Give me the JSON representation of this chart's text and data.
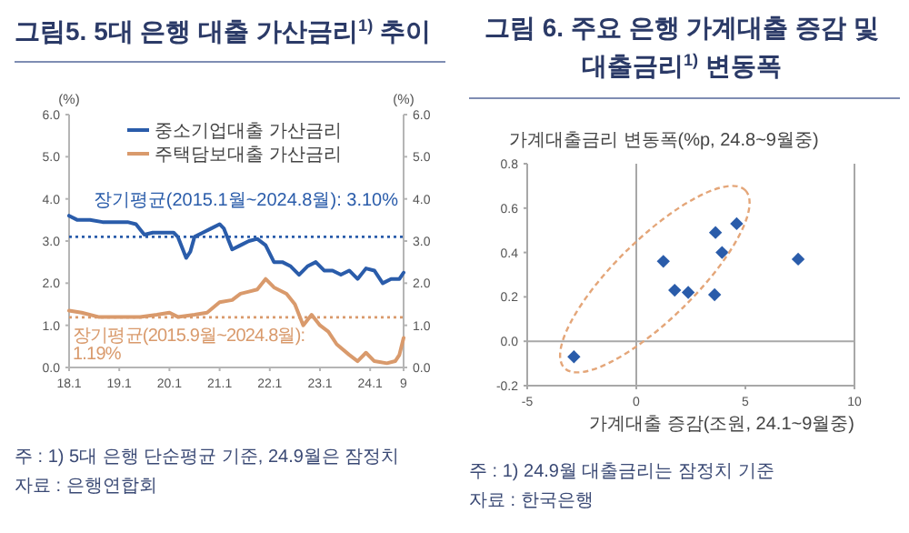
{
  "chart_data": [
    {
      "type": "line",
      "title": "그림5. 5대 은행 대출 가산금리$^{1)}$ 추이",
      "ylabel": "(%)",
      "y2label": "(%)",
      "legend": "top",
      "xlim": [
        "2018-01",
        "2024-09"
      ],
      "xticks": [
        {
          "value": "2018-01",
          "label": "18.1"
        },
        {
          "value": "2019-01",
          "label": "19.1"
        },
        {
          "value": "2020-01",
          "label": "20.1"
        },
        {
          "value": "2021-01",
          "label": "21.1"
        },
        {
          "value": "2022-01",
          "label": "22.1"
        },
        {
          "value": "2023-01",
          "label": "23.1"
        },
        {
          "value": "2024-01",
          "label": "24.1"
        },
        {
          "value": "2024-09",
          "label": "9"
        }
      ],
      "ylim": [
        0,
        6
      ],
      "yticks": [
        {
          "value": 0,
          "label": "0.0"
        },
        {
          "value": 1,
          "label": "1.0"
        },
        {
          "value": 2,
          "label": "2.0"
        },
        {
          "value": 3,
          "label": "3.0"
        },
        {
          "value": 4,
          "label": "4.0"
        },
        {
          "value": 5,
          "label": "5.0"
        },
        {
          "value": 6,
          "label": "6.0"
        }
      ],
      "y2lim": [
        0,
        6
      ],
      "y2ticks": [
        {
          "value": 0,
          "label": "0.0"
        },
        {
          "value": 1,
          "label": "1.0"
        },
        {
          "value": 2,
          "label": "2.0"
        },
        {
          "value": 3,
          "label": "3.0"
        },
        {
          "value": 4,
          "label": "4.0"
        },
        {
          "value": 5,
          "label": "5.0"
        },
        {
          "value": 6,
          "label": "6.0"
        }
      ],
      "series": [
        {
          "name": "중소기업대출 가산금리",
          "color": "#2a5caa",
          "x": [
            "2018-01",
            "2018-03",
            "2018-06",
            "2018-09",
            "2018-12",
            "2019-03",
            "2019-05",
            "2019-07",
            "2019-09",
            "2019-12",
            "2020-02",
            "2020-03",
            "2020-05",
            "2020-06",
            "2020-07",
            "2020-09",
            "2020-11",
            "2021-01",
            "2021-02",
            "2021-04",
            "2021-06",
            "2021-08",
            "2021-10",
            "2021-12",
            "2022-02",
            "2022-04",
            "2022-06",
            "2022-08",
            "2022-10",
            "2022-12",
            "2023-02",
            "2023-04",
            "2023-06",
            "2023-08",
            "2023-10",
            "2023-12",
            "2024-02",
            "2024-04",
            "2024-06",
            "2024-08",
            "2024-09"
          ],
          "values": [
            3.6,
            3.5,
            3.5,
            3.45,
            3.45,
            3.45,
            3.4,
            3.15,
            3.2,
            3.2,
            3.2,
            3.1,
            2.6,
            2.75,
            3.1,
            3.2,
            3.3,
            3.4,
            3.3,
            2.8,
            2.9,
            3.0,
            3.05,
            2.9,
            2.5,
            2.5,
            2.4,
            2.2,
            2.4,
            2.5,
            2.3,
            2.3,
            2.2,
            2.3,
            2.1,
            2.35,
            2.3,
            2.0,
            2.1,
            2.1,
            2.25
          ]
        },
        {
          "name": "주택담보대출 가산금리",
          "color": "#d99a6c",
          "x": [
            "2018-01",
            "2018-04",
            "2018-08",
            "2019-01",
            "2019-06",
            "2019-10",
            "2020-01",
            "2020-03",
            "2020-07",
            "2020-10",
            "2021-01",
            "2021-04",
            "2021-06",
            "2021-08",
            "2021-10",
            "2021-12",
            "2022-02",
            "2022-05",
            "2022-07",
            "2022-09",
            "2022-11",
            "2023-01",
            "2023-03",
            "2023-05",
            "2023-08",
            "2023-10",
            "2023-12",
            "2024-02",
            "2024-05",
            "2024-07",
            "2024-08",
            "2024-09"
          ],
          "values": [
            1.35,
            1.3,
            1.2,
            1.2,
            1.2,
            1.25,
            1.3,
            1.2,
            1.25,
            1.3,
            1.55,
            1.6,
            1.75,
            1.8,
            1.85,
            2.1,
            1.9,
            1.75,
            1.5,
            1.0,
            1.25,
            1.0,
            0.85,
            0.55,
            0.3,
            0.15,
            0.35,
            0.15,
            0.1,
            0.15,
            0.3,
            0.7
          ]
        }
      ],
      "ref_lines": [
        {
          "axis": "y",
          "value": 3.1,
          "label": "장기평균(2015.1월~2024.8월): 3.10%",
          "color": "#2a5caa",
          "line_style": "dotted"
        },
        {
          "axis": "y",
          "value": 1.19,
          "label": "장기평균(2015.9월~2024.8월): 1.19%",
          "color": "#d99a6c",
          "line_style": "dotted"
        }
      ],
      "annotations": [
        "주 : 1) 5대 은행 단순평균 기준, 24.9월은 잠정치",
        "자료 : 은행연합회"
      ]
    },
    {
      "type": "scatter",
      "title": "그림 6. 주요 은행 가계대출 증감 및 대출금리$^{1)}$ 변동폭",
      "xlabel": "가계대출 증감(조원, 24.1~9월중)",
      "ylabel": "가계대출금리 변동폭(%p, 24.8~9월중)",
      "marker": "diamond",
      "xlim": [
        -5,
        10
      ],
      "xticks": [
        -5,
        0,
        5,
        10
      ],
      "ylim": [
        -0.2,
        0.8
      ],
      "yticks": [
        -0.2,
        {
          "value": 0,
          "label": "0.0"
        },
        0.2,
        0.4,
        0.6,
        0.8
      ],
      "series": [
        {
          "color": "#2a5caa",
          "x": [
            -2.86,
            1.24,
            1.76,
            2.38,
            3.59,
            3.93,
            3.63,
            4.6,
            7.42
          ],
          "values": [
            -0.07,
            0.36,
            0.23,
            0.22,
            0.21,
            0.4,
            0.49,
            0.53,
            0.37
          ]
        }
      ],
      "annotations": [
        "주 : 1) 24.9월 대출금리는 잠정치 기준",
        "자료 : 한국은행"
      ]
    }
  ]
}
